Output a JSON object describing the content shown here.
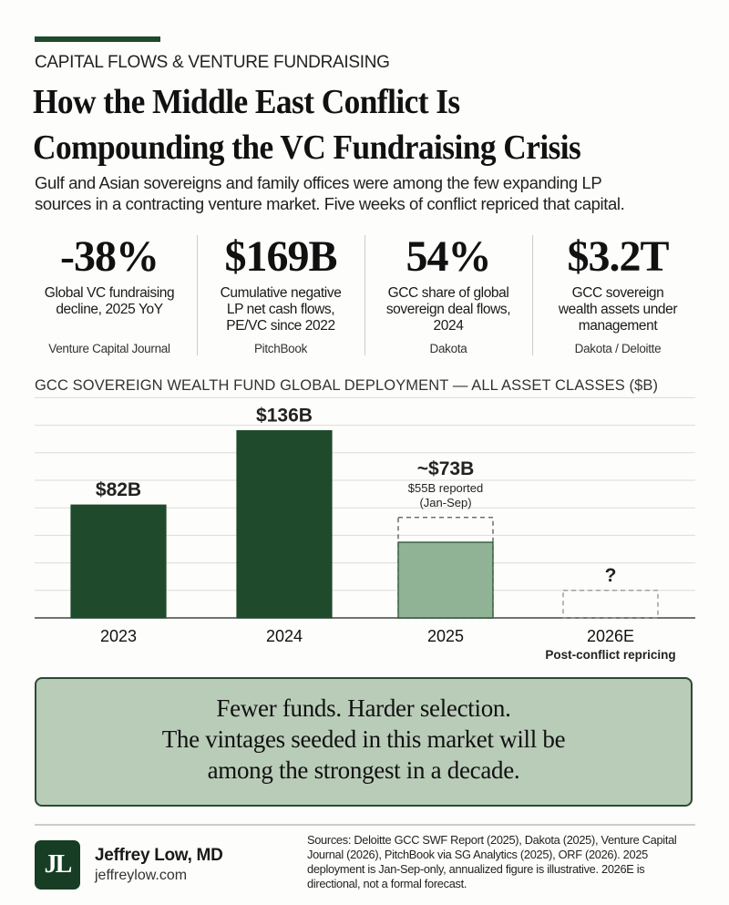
{
  "header": {
    "kicker": "CAPITAL FLOWS & VENTURE FUNDRAISING",
    "title_line1": "How the Middle East Conflict Is",
    "title_line2": "Compounding the VC Fundraising Crisis",
    "subtitle_line1": "Gulf and Asian sovereigns and family offices were among the few expanding LP",
    "subtitle_line2": "sources in a contracting venture market. Five weeks of conflict repriced that capital."
  },
  "stats": [
    {
      "value": "-38%",
      "desc": "Global VC fundraising decline, 2025 YoY",
      "source": "Venture Capital Journal"
    },
    {
      "value": "$169B",
      "desc": "Cumulative negative LP net cash flows, PE/VC since 2022",
      "source": "PitchBook"
    },
    {
      "value": "54%",
      "desc": "GCC share of global sovereign deal flows, 2024",
      "source": "Dakota"
    },
    {
      "value": "$3.2T",
      "desc": "GCC sovereign wealth assets under management",
      "source": "Dakota / Deloitte"
    }
  ],
  "chart_data": {
    "type": "bar",
    "title": "GCC SOVEREIGN WEALTH FUND GLOBAL DEPLOYMENT — ALL ASSET CLASSES ($B)",
    "categories": [
      "2023",
      "2024",
      "2025",
      "2026E"
    ],
    "values": [
      82,
      136,
      55,
      null
    ],
    "annualized": [
      null,
      null,
      73,
      null
    ],
    "data_labels": [
      "$82B",
      "$136B",
      "~$73B",
      "?"
    ],
    "notes": [
      "",
      "",
      "$55B reported (Jan-Sep)",
      "Post-conflict repricing"
    ],
    "ylim": [
      0,
      160
    ],
    "grid": true,
    "colors": {
      "actual": "#1f4a2c",
      "partial": "#8fb394",
      "dashed": "#555555"
    }
  },
  "callout": {
    "line1": "Fewer funds. Harder selection.",
    "line2": "The vintages seeded in this market will be",
    "line3": "among the strongest in a decade."
  },
  "footer": {
    "logo": "JL",
    "author": "Jeffrey Low, MD",
    "site": "jeffreylow.com",
    "sources": "Sources: Deloitte GCC SWF Report (2025), Dakota (2025), Venture Capital Journal (2026), PitchBook via SG Analytics (2025), ORF (2026). 2025 deployment is Jan-Sep-only, annualized figure is illustrative. 2026E is directional, not a formal forecast."
  },
  "colors": {
    "accent": "#1f4a2c",
    "callout_bg": "#b9ccb8"
  }
}
